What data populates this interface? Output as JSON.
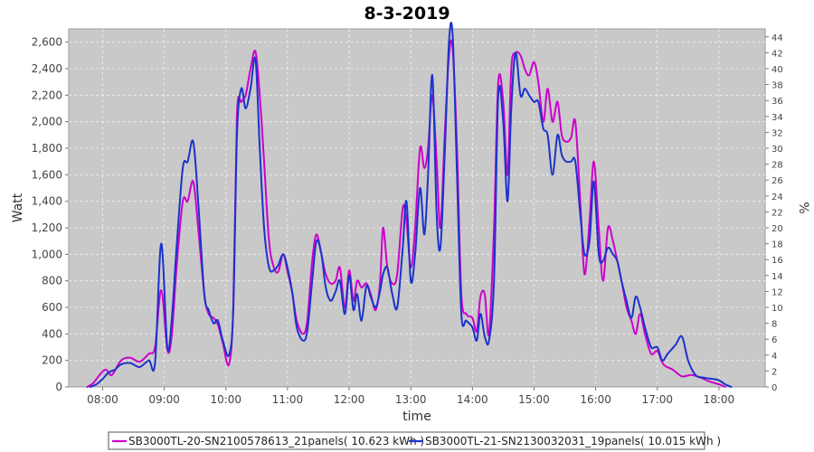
{
  "chart_data": {
    "type": "line",
    "title": "8-3-2019",
    "xlabel": "time",
    "ylabel": "Watt",
    "y2label": "%",
    "x_ticks": [
      "08:00",
      "09:00",
      "10:00",
      "11:00",
      "12:00",
      "13:00",
      "14:00",
      "15:00",
      "16:00",
      "17:00",
      "18:00"
    ],
    "xlim_hours": [
      7.45,
      18.75
    ],
    "ylim": [
      0,
      2700
    ],
    "y_ticks": [
      0,
      200,
      400,
      600,
      800,
      1000,
      1200,
      1400,
      1600,
      1800,
      2000,
      2200,
      2400,
      2600
    ],
    "y_tick_labels": [
      "0",
      "200",
      "400",
      "600",
      "800",
      "1,000",
      "1,200",
      "1,400",
      "1,600",
      "1,800",
      "2,000",
      "2,200",
      "2,400",
      "2,600"
    ],
    "y2lim": [
      0,
      45
    ],
    "y2_ticks": [
      0,
      2,
      4,
      6,
      8,
      10,
      12,
      14,
      16,
      18,
      20,
      22,
      24,
      26,
      28,
      30,
      32,
      34,
      36,
      38,
      40,
      42,
      44
    ],
    "grid": true,
    "legend_position": "bottom",
    "series": [
      {
        "name": "SB3000TL-20-SN2100578613_21panels( 10.623 kWh )",
        "color": "#cc00cc",
        "points": [
          [
            7.75,
            0
          ],
          [
            7.85,
            30
          ],
          [
            7.95,
            90
          ],
          [
            8.05,
            130
          ],
          [
            8.15,
            90
          ],
          [
            8.3,
            200
          ],
          [
            8.45,
            220
          ],
          [
            8.6,
            190
          ],
          [
            8.75,
            250
          ],
          [
            8.85,
            300
          ],
          [
            8.95,
            730
          ],
          [
            9.05,
            280
          ],
          [
            9.12,
            380
          ],
          [
            9.2,
            900
          ],
          [
            9.3,
            1400
          ],
          [
            9.38,
            1400
          ],
          [
            9.47,
            1550
          ],
          [
            9.55,
            1200
          ],
          [
            9.65,
            700
          ],
          [
            9.72,
            550
          ],
          [
            9.8,
            520
          ],
          [
            9.87,
            470
          ],
          [
            9.95,
            330
          ],
          [
            10.05,
            170
          ],
          [
            10.12,
            600
          ],
          [
            10.18,
            2050
          ],
          [
            10.25,
            2150
          ],
          [
            10.32,
            2200
          ],
          [
            10.4,
            2400
          ],
          [
            10.48,
            2530
          ],
          [
            10.55,
            2200
          ],
          [
            10.62,
            1700
          ],
          [
            10.7,
            1100
          ],
          [
            10.78,
            900
          ],
          [
            10.85,
            870
          ],
          [
            10.93,
            1000
          ],
          [
            11.0,
            870
          ],
          [
            11.08,
            700
          ],
          [
            11.15,
            500
          ],
          [
            11.25,
            400
          ],
          [
            11.32,
            500
          ],
          [
            11.4,
            950
          ],
          [
            11.47,
            1150
          ],
          [
            11.55,
            1000
          ],
          [
            11.62,
            850
          ],
          [
            11.7,
            780
          ],
          [
            11.78,
            800
          ],
          [
            11.85,
            900
          ],
          [
            11.93,
            600
          ],
          [
            12.0,
            880
          ],
          [
            12.07,
            650
          ],
          [
            12.13,
            800
          ],
          [
            12.2,
            750
          ],
          [
            12.28,
            780
          ],
          [
            12.35,
            700
          ],
          [
            12.43,
            580
          ],
          [
            12.5,
            780
          ],
          [
            12.55,
            1200
          ],
          [
            12.62,
            900
          ],
          [
            12.7,
            780
          ],
          [
            12.78,
            850
          ],
          [
            12.87,
            1350
          ],
          [
            12.93,
            1250
          ],
          [
            13.0,
            900
          ],
          [
            13.07,
            1200
          ],
          [
            13.15,
            1800
          ],
          [
            13.22,
            1650
          ],
          [
            13.28,
            1800
          ],
          [
            13.35,
            2200
          ],
          [
            13.42,
            1700
          ],
          [
            13.48,
            1200
          ],
          [
            13.55,
            1900
          ],
          [
            13.62,
            2500
          ],
          [
            13.68,
            2550
          ],
          [
            13.75,
            1800
          ],
          [
            13.82,
            700
          ],
          [
            13.9,
            550
          ],
          [
            14.0,
            520
          ],
          [
            14.07,
            420
          ],
          [
            14.13,
            680
          ],
          [
            14.2,
            700
          ],
          [
            14.27,
            400
          ],
          [
            14.35,
            1200
          ],
          [
            14.42,
            2300
          ],
          [
            14.5,
            2150
          ],
          [
            14.57,
            1600
          ],
          [
            14.63,
            2400
          ],
          [
            14.7,
            2520
          ],
          [
            14.78,
            2500
          ],
          [
            14.85,
            2400
          ],
          [
            14.92,
            2350
          ],
          [
            15.0,
            2450
          ],
          [
            15.07,
            2300
          ],
          [
            15.15,
            2000
          ],
          [
            15.22,
            2250
          ],
          [
            15.3,
            2000
          ],
          [
            15.38,
            2150
          ],
          [
            15.45,
            1900
          ],
          [
            15.52,
            1850
          ],
          [
            15.6,
            1880
          ],
          [
            15.67,
            2000
          ],
          [
            15.75,
            1400
          ],
          [
            15.82,
            850
          ],
          [
            15.9,
            1250
          ],
          [
            15.97,
            1700
          ],
          [
            16.05,
            1200
          ],
          [
            16.12,
            800
          ],
          [
            16.2,
            1200
          ],
          [
            16.28,
            1100
          ],
          [
            16.35,
            950
          ],
          [
            16.42,
            800
          ],
          [
            16.5,
            600
          ],
          [
            16.58,
            500
          ],
          [
            16.65,
            400
          ],
          [
            16.72,
            550
          ],
          [
            16.8,
            400
          ],
          [
            16.9,
            250
          ],
          [
            17.0,
            270
          ],
          [
            17.1,
            170
          ],
          [
            17.25,
            130
          ],
          [
            17.4,
            80
          ],
          [
            17.55,
            90
          ],
          [
            17.7,
            70
          ],
          [
            17.85,
            40
          ],
          [
            18.0,
            20
          ],
          [
            18.1,
            0
          ]
        ]
      },
      {
        "name": "SB3000TL-21-SN2130032031_19panels( 10.015 kWh )",
        "color": "#1a33cc",
        "points": [
          [
            7.8,
            0
          ],
          [
            7.9,
            20
          ],
          [
            8.0,
            60
          ],
          [
            8.1,
            110
          ],
          [
            8.2,
            130
          ],
          [
            8.3,
            170
          ],
          [
            8.45,
            180
          ],
          [
            8.6,
            150
          ],
          [
            8.75,
            200
          ],
          [
            8.85,
            180
          ],
          [
            8.95,
            1080
          ],
          [
            9.05,
            300
          ],
          [
            9.12,
            500
          ],
          [
            9.2,
            1050
          ],
          [
            9.3,
            1650
          ],
          [
            9.38,
            1700
          ],
          [
            9.47,
            1850
          ],
          [
            9.55,
            1400
          ],
          [
            9.65,
            700
          ],
          [
            9.72,
            580
          ],
          [
            9.8,
            480
          ],
          [
            9.87,
            500
          ],
          [
            9.95,
            350
          ],
          [
            10.05,
            240
          ],
          [
            10.12,
            580
          ],
          [
            10.18,
            1900
          ],
          [
            10.25,
            2250
          ],
          [
            10.32,
            2100
          ],
          [
            10.4,
            2250
          ],
          [
            10.48,
            2470
          ],
          [
            10.55,
            1800
          ],
          [
            10.62,
            1200
          ],
          [
            10.7,
            900
          ],
          [
            10.78,
            880
          ],
          [
            10.85,
            920
          ],
          [
            10.93,
            1000
          ],
          [
            11.0,
            900
          ],
          [
            11.08,
            700
          ],
          [
            11.15,
            450
          ],
          [
            11.25,
            350
          ],
          [
            11.32,
            420
          ],
          [
            11.4,
            800
          ],
          [
            11.47,
            1100
          ],
          [
            11.55,
            1000
          ],
          [
            11.62,
            750
          ],
          [
            11.7,
            650
          ],
          [
            11.78,
            720
          ],
          [
            11.85,
            800
          ],
          [
            11.93,
            550
          ],
          [
            12.0,
            840
          ],
          [
            12.07,
            580
          ],
          [
            12.13,
            700
          ],
          [
            12.2,
            500
          ],
          [
            12.28,
            760
          ],
          [
            12.35,
            680
          ],
          [
            12.43,
            600
          ],
          [
            12.5,
            720
          ],
          [
            12.55,
            850
          ],
          [
            12.62,
            900
          ],
          [
            12.7,
            700
          ],
          [
            12.78,
            600
          ],
          [
            12.87,
            1050
          ],
          [
            12.93,
            1400
          ],
          [
            13.0,
            800
          ],
          [
            13.07,
            1000
          ],
          [
            13.15,
            1500
          ],
          [
            13.22,
            1150
          ],
          [
            13.28,
            1600
          ],
          [
            13.35,
            2350
          ],
          [
            13.42,
            1300
          ],
          [
            13.48,
            1050
          ],
          [
            13.55,
            1750
          ],
          [
            13.62,
            2600
          ],
          [
            13.68,
            2650
          ],
          [
            13.75,
            1600
          ],
          [
            13.82,
            550
          ],
          [
            13.9,
            500
          ],
          [
            14.0,
            450
          ],
          [
            14.07,
            350
          ],
          [
            14.13,
            550
          ],
          [
            14.2,
            380
          ],
          [
            14.27,
            350
          ],
          [
            14.35,
            800
          ],
          [
            14.42,
            2200
          ],
          [
            14.5,
            2000
          ],
          [
            14.57,
            1400
          ],
          [
            14.63,
            2100
          ],
          [
            14.7,
            2520
          ],
          [
            14.78,
            2200
          ],
          [
            14.85,
            2250
          ],
          [
            14.92,
            2200
          ],
          [
            15.0,
            2150
          ],
          [
            15.07,
            2150
          ],
          [
            15.15,
            1950
          ],
          [
            15.22,
            1900
          ],
          [
            15.3,
            1600
          ],
          [
            15.38,
            1900
          ],
          [
            15.45,
            1750
          ],
          [
            15.52,
            1700
          ],
          [
            15.6,
            1700
          ],
          [
            15.67,
            1700
          ],
          [
            15.75,
            1300
          ],
          [
            15.82,
            1000
          ],
          [
            15.9,
            1100
          ],
          [
            15.97,
            1550
          ],
          [
            16.05,
            1000
          ],
          [
            16.12,
            950
          ],
          [
            16.2,
            1050
          ],
          [
            16.28,
            1000
          ],
          [
            16.35,
            950
          ],
          [
            16.42,
            800
          ],
          [
            16.5,
            650
          ],
          [
            16.58,
            520
          ],
          [
            16.65,
            680
          ],
          [
            16.72,
            600
          ],
          [
            16.8,
            450
          ],
          [
            16.9,
            300
          ],
          [
            17.0,
            300
          ],
          [
            17.08,
            200
          ],
          [
            17.17,
            250
          ],
          [
            17.3,
            320
          ],
          [
            17.4,
            380
          ],
          [
            17.5,
            200
          ],
          [
            17.62,
            90
          ],
          [
            17.75,
            70
          ],
          [
            17.9,
            60
          ],
          [
            18.0,
            50
          ],
          [
            18.1,
            20
          ],
          [
            18.2,
            0
          ]
        ]
      }
    ]
  }
}
